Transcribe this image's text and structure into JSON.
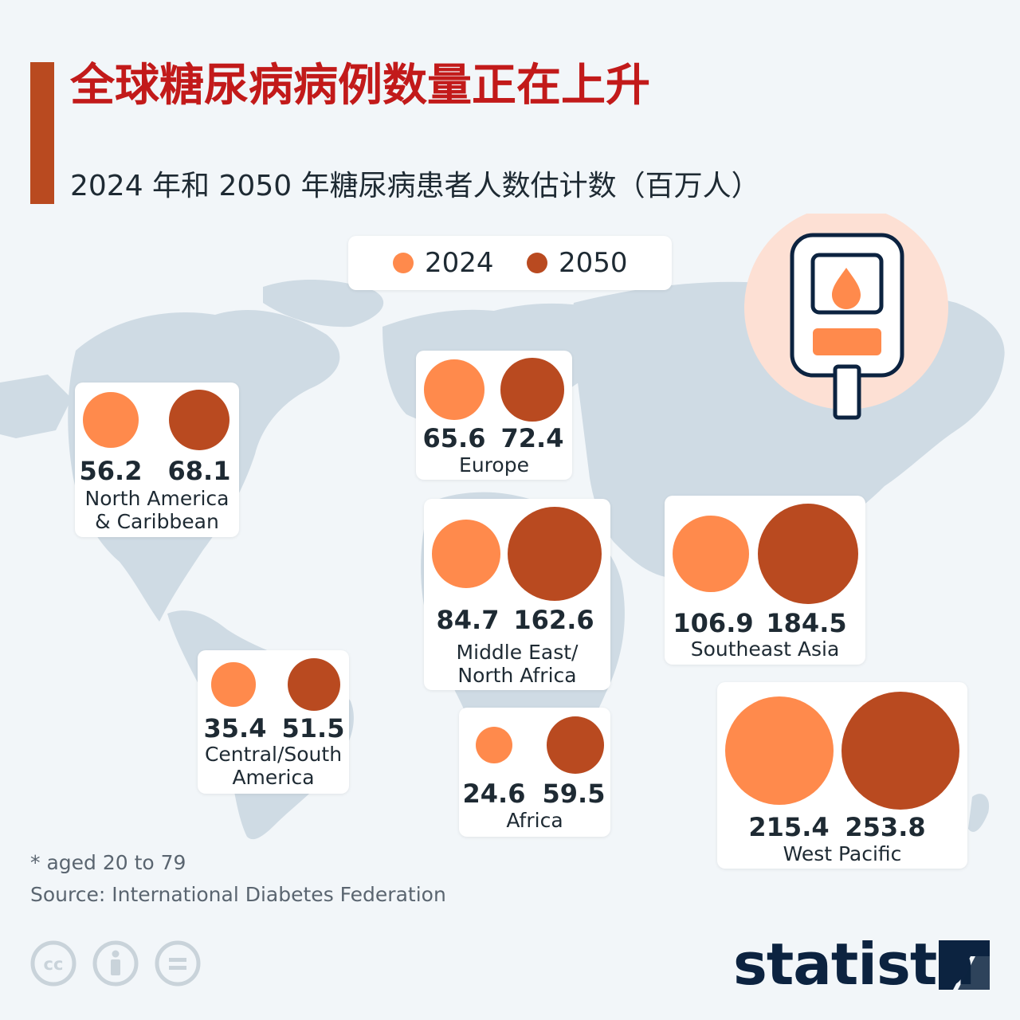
{
  "title": "全球糖尿病病例数量正在上升",
  "subtitle": "2024 年和 2050 年糖尿病患者人数估计数（百万人）",
  "legend": [
    {
      "label": "2024",
      "color": "#ff8a4c"
    },
    {
      "label": "2050",
      "color": "#b94a20"
    }
  ],
  "icon": "glucose-meter-icon",
  "chart_data": {
    "type": "bubble",
    "series": [
      {
        "name": "2024",
        "color": "#ff8a4c"
      },
      {
        "name": "2050",
        "color": "#b94a20"
      }
    ],
    "regions": [
      {
        "id": "north-america",
        "label": "North America\n& Caribbean",
        "values": [
          56.2,
          68.1
        ]
      },
      {
        "id": "europe",
        "label": "Europe",
        "values": [
          65.6,
          72.4
        ]
      },
      {
        "id": "middle-east",
        "label": "Middle East/\nNorth Africa",
        "values": [
          84.7,
          162.6
        ]
      },
      {
        "id": "southeast-asia",
        "label": "Southeast Asia",
        "values": [
          106.9,
          184.5
        ]
      },
      {
        "id": "central-south-america",
        "label": "Central/South\nAmerica",
        "values": [
          35.4,
          51.5
        ]
      },
      {
        "id": "africa",
        "label": "Africa",
        "values": [
          24.6,
          59.5
        ]
      },
      {
        "id": "west-pacific",
        "label": "West Pacific",
        "values": [
          215.4,
          253.8
        ]
      }
    ]
  },
  "footnote": "* aged 20 to 79",
  "source": "Source: International Diabetes Federation",
  "license_icons": [
    "cc-icon",
    "attribution-icon",
    "no-derivatives-icon"
  ],
  "brand": "statista"
}
